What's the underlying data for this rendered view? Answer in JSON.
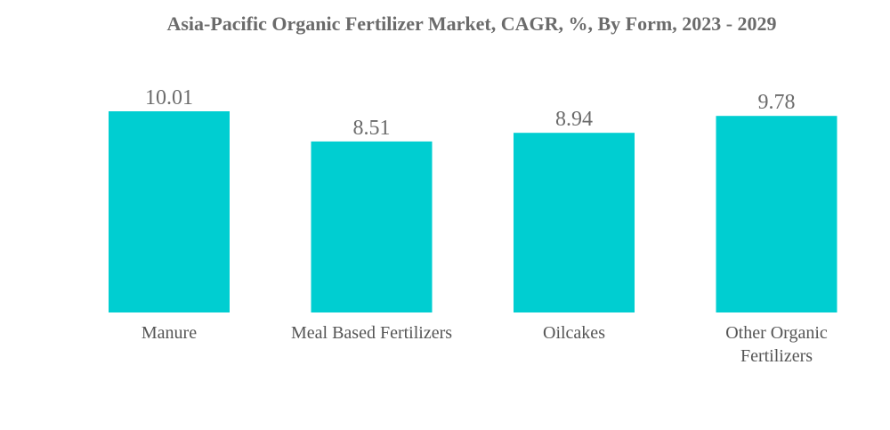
{
  "chart_data": {
    "type": "bar",
    "title": "Asia-Pacific Organic Fertilizer Market, CAGR, %, By Form, 2023 - 2029",
    "categories": [
      [
        "Manure"
      ],
      [
        "Meal Based Fertilizers"
      ],
      [
        "Oilcakes"
      ],
      [
        "Other Organic",
        "Fertilizers"
      ]
    ],
    "values": [
      10.01,
      8.51,
      8.94,
      9.78
    ],
    "value_labels": [
      "10.01",
      "8.51",
      "8.94",
      "9.78"
    ],
    "xlabel": "",
    "ylabel": "",
    "ylim": [
      0,
      10.01
    ],
    "grid": false,
    "legend": "none",
    "bar_color": "#00CED1"
  }
}
